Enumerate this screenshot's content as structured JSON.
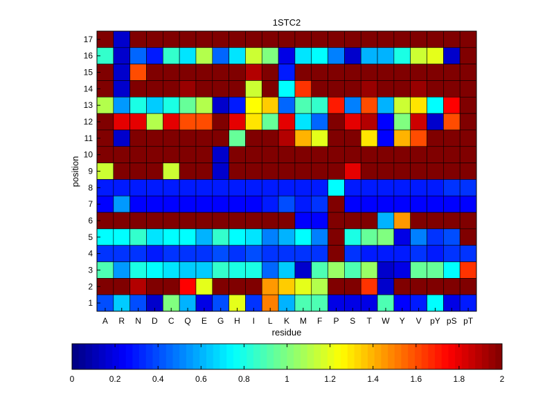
{
  "chart_data": {
    "type": "heatmap",
    "title": "1STC2",
    "xlabel": "residue",
    "ylabel": "position",
    "x_categories": [
      "A",
      "R",
      "N",
      "D",
      "C",
      "Q",
      "E",
      "G",
      "H",
      "I",
      "L",
      "K",
      "M",
      "F",
      "P",
      "S",
      "T",
      "W",
      "Y",
      "V",
      "pY",
      "pS",
      "pT"
    ],
    "y_categories": [
      17,
      16,
      15,
      14,
      13,
      12,
      11,
      10,
      9,
      8,
      7,
      6,
      5,
      4,
      3,
      2,
      1
    ],
    "values": [
      [
        2,
        0.15,
        2,
        2,
        2,
        2,
        2,
        2,
        2,
        2,
        2,
        2,
        2,
        2,
        2,
        2,
        2,
        2,
        2,
        2,
        2,
        2,
        2
      ],
      [
        0.85,
        0.15,
        0.45,
        0.3,
        0.85,
        0.7,
        1.1,
        0.45,
        0.7,
        1.15,
        1.0,
        0.2,
        0.7,
        0.75,
        0.5,
        0.15,
        0.6,
        0.6,
        0.8,
        1.15,
        1.2,
        0.15,
        2
      ],
      [
        2,
        0.15,
        1.6,
        2,
        2,
        2,
        2,
        2,
        2,
        1.9,
        2,
        0.3,
        2,
        2,
        2,
        2,
        2,
        2,
        2,
        2,
        2,
        2,
        2
      ],
      [
        2,
        0.15,
        2,
        2,
        2,
        1.95,
        2,
        2,
        2,
        1.15,
        2,
        0.75,
        1.65,
        2,
        2,
        2,
        1.95,
        2,
        2,
        1.95,
        2,
        2,
        2
      ],
      [
        1.1,
        0.55,
        0.8,
        0.65,
        0.8,
        0.95,
        1.1,
        0.15,
        0.3,
        1.25,
        1.35,
        0.45,
        0.9,
        0.85,
        1.7,
        0.5,
        1.6,
        0.6,
        1.15,
        1.3,
        0.75,
        1.75,
        2
      ],
      [
        2,
        1.8,
        1.8,
        1.1,
        1.8,
        1.6,
        1.6,
        2,
        1.8,
        1.3,
        0.95,
        1.8,
        0.7,
        0.45,
        2,
        1.8,
        1.9,
        0.25,
        1.0,
        1.85,
        0.15,
        1.6,
        2
      ],
      [
        2,
        0.15,
        2,
        2,
        2,
        2,
        2,
        2,
        0.95,
        2,
        2,
        1.9,
        1.4,
        1.2,
        2,
        2,
        1.3,
        0.25,
        1.4,
        1.6,
        2,
        2,
        2
      ],
      [
        2,
        2,
        2,
        2,
        2,
        2,
        2,
        0.15,
        2,
        2,
        2,
        2,
        2,
        2,
        2,
        2,
        2,
        2,
        2,
        2,
        2,
        2,
        2
      ],
      [
        1.15,
        2,
        2,
        2,
        1.15,
        2,
        2,
        0.15,
        2,
        2,
        2,
        2,
        2,
        2,
        2,
        1.8,
        2,
        2,
        2,
        2,
        2,
        2,
        2
      ],
      [
        0.3,
        0.3,
        0.3,
        0.3,
        0.3,
        0.3,
        0.3,
        0.3,
        0.3,
        0.3,
        0.3,
        0.3,
        0.3,
        0.3,
        0.75,
        0.3,
        0.3,
        0.3,
        0.3,
        0.3,
        0.3,
        0.35,
        0.35
      ],
      [
        0.25,
        0.55,
        0.25,
        0.25,
        0.25,
        0.25,
        0.25,
        0.25,
        0.25,
        0.25,
        0.3,
        0.4,
        0.3,
        0.35,
        2,
        0.25,
        0.25,
        0.25,
        0.25,
        0.25,
        0.25,
        0.25,
        0.25
      ],
      [
        2,
        2,
        2,
        2,
        2,
        2,
        2,
        2,
        2,
        2,
        2,
        2,
        0.25,
        0.25,
        2,
        2,
        2,
        0.6,
        1.45,
        2,
        2,
        2,
        2
      ],
      [
        0.75,
        0.75,
        0.85,
        0.7,
        0.75,
        0.75,
        0.6,
        0.85,
        0.75,
        0.7,
        0.5,
        0.6,
        0.75,
        0.5,
        2,
        0.8,
        0.95,
        1.0,
        0.2,
        0.5,
        0.35,
        0.4,
        2
      ],
      [
        0.35,
        0.35,
        0.35,
        0.3,
        0.35,
        0.35,
        0.35,
        0.4,
        0.35,
        0.4,
        0.35,
        0.35,
        0.35,
        0.35,
        2,
        0.35,
        0.3,
        0.3,
        0.3,
        0.35,
        0.3,
        0.35,
        0.35
      ],
      [
        0.9,
        0.55,
        0.8,
        0.75,
        0.7,
        0.65,
        0.65,
        0.85,
        0.8,
        0.8,
        0.45,
        0.65,
        0.15,
        0.9,
        1.05,
        0.9,
        1.05,
        0.15,
        0.2,
        0.95,
        0.95,
        0.75,
        1.65
      ],
      [
        2,
        2,
        1.9,
        2,
        2,
        1.75,
        1.2,
        2,
        2,
        2,
        1.45,
        1.35,
        1.2,
        1.1,
        2,
        2,
        1.65,
        0.15,
        2,
        2,
        2,
        2,
        2
      ],
      [
        0.4,
        0.65,
        0.4,
        0.15,
        1.0,
        0.6,
        0.2,
        0.4,
        1.2,
        0.35,
        1.5,
        0.6,
        0.9,
        0.9,
        0.2,
        0.2,
        0.2,
        0.9,
        0.25,
        0.3,
        0.75,
        0.2,
        0.3
      ]
    ],
    "colorscale": "jet",
    "color_range": [
      0,
      2
    ],
    "colorbar": {
      "orientation": "horizontal",
      "placement": "bottom",
      "ticks": [
        "0",
        "0.2",
        "0.4",
        "0.6",
        "0.8",
        "1",
        "1.2",
        "1.4",
        "1.6",
        "1.8",
        "2"
      ]
    },
    "grid": true
  }
}
